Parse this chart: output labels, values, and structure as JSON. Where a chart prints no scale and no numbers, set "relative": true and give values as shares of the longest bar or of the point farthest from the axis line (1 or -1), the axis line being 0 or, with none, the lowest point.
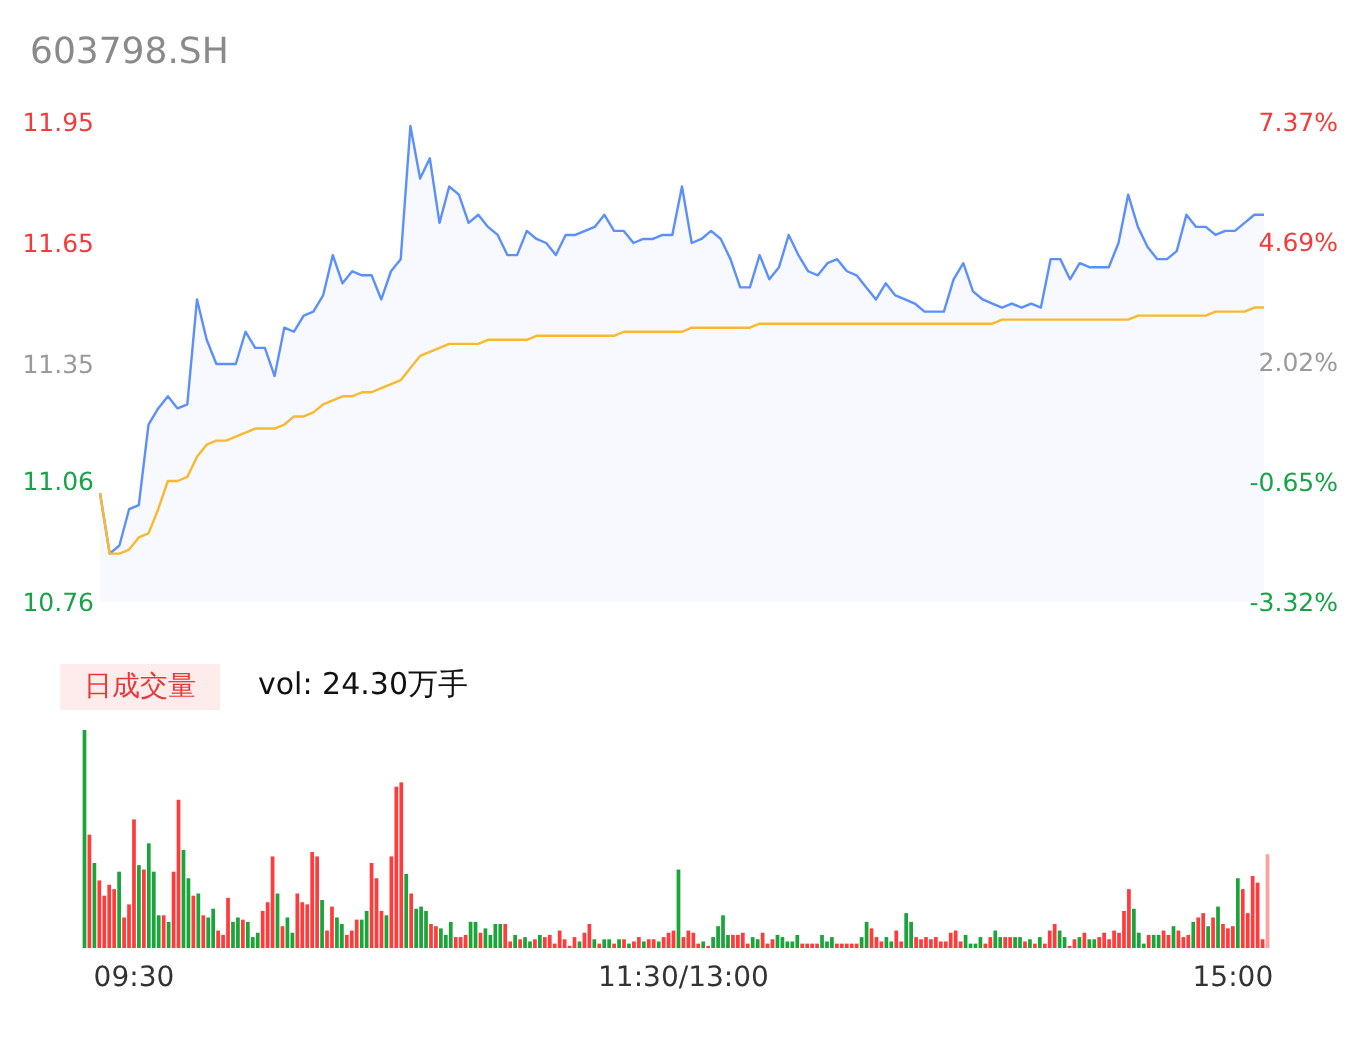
{
  "chart_data": [
    {
      "type": "line",
      "title": "603798.SH",
      "ylim": [
        10.76,
        11.95
      ],
      "yticks": [
        10.76,
        11.06,
        11.35,
        11.65,
        11.95
      ],
      "y2lim": [
        -3.32,
        7.37
      ],
      "y2ticks": [
        {
          "value": -3.32,
          "label": "-3.32%"
        },
        {
          "value": -0.65,
          "label": "-0.65%"
        },
        {
          "value": 2.02,
          "label": "2.02%"
        },
        {
          "value": 4.69,
          "label": "4.69%"
        },
        {
          "value": 7.37,
          "label": "7.37%"
        }
      ],
      "tick_labels": "y",
      "categories": [
        null,
        null,
        null,
        null,
        null,
        null,
        null,
        null,
        null,
        null,
        null,
        null,
        null,
        null,
        null,
        null,
        null,
        null,
        null,
        null,
        null,
        null,
        null,
        null,
        null,
        null,
        null,
        null,
        null,
        null,
        null,
        null,
        null,
        null,
        null,
        null,
        null,
        null,
        null,
        null,
        null,
        null,
        null,
        null,
        null,
        null,
        null,
        null,
        null,
        null,
        null,
        null,
        null,
        null,
        null,
        null,
        null,
        null,
        null,
        null,
        null,
        null,
        null,
        null,
        null,
        null,
        null,
        null,
        null,
        null,
        null,
        null,
        null,
        null,
        null,
        null,
        null,
        null,
        null,
        null,
        null,
        null,
        null,
        null,
        null,
        null,
        null,
        null,
        null,
        null,
        null,
        null,
        null,
        null,
        null,
        null,
        null,
        null,
        null,
        null,
        null,
        null,
        null,
        null,
        null,
        null,
        null,
        null,
        null,
        null,
        null,
        null,
        null,
        null,
        null,
        null,
        null,
        null,
        null,
        null,
        null
      ],
      "series": [
        {
          "type": "area",
          "color": "#5b8ff9",
          "values": [
            11.03,
            10.88,
            10.9,
            10.99,
            11.0,
            11.2,
            11.24,
            11.27,
            11.24,
            11.25,
            11.51,
            11.41,
            11.35,
            11.35,
            11.35,
            11.43,
            11.39,
            11.39,
            11.32,
            11.44,
            11.43,
            11.47,
            11.48,
            11.52,
            11.62,
            11.55,
            11.58,
            11.57,
            11.57,
            11.51,
            11.58,
            11.61,
            11.94,
            11.81,
            11.86,
            11.7,
            11.79,
            11.77,
            11.7,
            11.72,
            11.69,
            11.67,
            11.62,
            11.62,
            11.68,
            11.66,
            11.65,
            11.62,
            11.67,
            11.67,
            11.68,
            11.69,
            11.72,
            11.68,
            11.68,
            11.65,
            11.66,
            11.66,
            11.67,
            11.67,
            11.79,
            11.65,
            11.66,
            11.68,
            11.66,
            11.61,
            11.54,
            11.54,
            11.62,
            11.56,
            11.59,
            11.67,
            11.62,
            11.58,
            11.57,
            11.6,
            11.61,
            11.58,
            11.57,
            11.54,
            11.51,
            11.55,
            11.52,
            11.51,
            11.5,
            11.48,
            11.48,
            11.48,
            11.56,
            11.6,
            11.53,
            11.51,
            11.5,
            11.49,
            11.5,
            11.49,
            11.5,
            11.49,
            11.61,
            11.61,
            11.56,
            11.6,
            11.59,
            11.59,
            11.59,
            11.65,
            11.77,
            11.69,
            11.64,
            11.61,
            11.61,
            11.63,
            11.72,
            11.69,
            11.69,
            11.67,
            11.68,
            11.68,
            11.7,
            11.72,
            11.72
          ]
        },
        {
          "type": "line",
          "color": "#f9b92e",
          "values": [
            11.03,
            10.88,
            10.88,
            10.89,
            10.92,
            10.93,
            10.99,
            11.06,
            11.06,
            11.07,
            11.12,
            11.15,
            11.16,
            11.16,
            11.17,
            11.18,
            11.19,
            11.19,
            11.19,
            11.2,
            11.22,
            11.22,
            11.23,
            11.25,
            11.26,
            11.27,
            11.27,
            11.28,
            11.28,
            11.29,
            11.3,
            11.31,
            11.34,
            11.37,
            11.38,
            11.39,
            11.4,
            11.4,
            11.4,
            11.4,
            11.41,
            11.41,
            11.41,
            11.41,
            11.41,
            11.42,
            11.42,
            11.42,
            11.42,
            11.42,
            11.42,
            11.42,
            11.42,
            11.42,
            11.43,
            11.43,
            11.43,
            11.43,
            11.43,
            11.43,
            11.43,
            11.44,
            11.44,
            11.44,
            11.44,
            11.44,
            11.44,
            11.44,
            11.45,
            11.45,
            11.45,
            11.45,
            11.45,
            11.45,
            11.45,
            11.45,
            11.45,
            11.45,
            11.45,
            11.45,
            11.45,
            11.45,
            11.45,
            11.45,
            11.45,
            11.45,
            11.45,
            11.45,
            11.45,
            11.45,
            11.45,
            11.45,
            11.45,
            11.46,
            11.46,
            11.46,
            11.46,
            11.46,
            11.46,
            11.46,
            11.46,
            11.46,
            11.46,
            11.46,
            11.46,
            11.46,
            11.46,
            11.47,
            11.47,
            11.47,
            11.47,
            11.47,
            11.47,
            11.47,
            11.47,
            11.48,
            11.48,
            11.48,
            11.48,
            11.49,
            11.49
          ]
        }
      ]
    },
    {
      "type": "bar",
      "title": "日成交量",
      "subtitle": "vol: 24.30万手",
      "relative": true,
      "tick_labels": "x",
      "categories": [
        null,
        null,
        null,
        null,
        null,
        null,
        null,
        null,
        null,
        null,
        "09:30",
        null,
        null,
        null,
        null,
        null,
        null,
        null,
        null,
        null,
        null,
        null,
        null,
        null,
        null,
        null,
        null,
        null,
        null,
        null,
        null,
        null,
        null,
        null,
        null,
        null,
        null,
        null,
        null,
        null,
        null,
        null,
        null,
        null,
        null,
        null,
        null,
        null,
        null,
        null,
        null,
        null,
        null,
        null,
        null,
        null,
        null,
        null,
        null,
        null,
        null,
        null,
        null,
        null,
        null,
        null,
        null,
        null,
        null,
        null,
        null,
        null,
        null,
        null,
        null,
        null,
        null,
        null,
        null,
        null,
        null,
        null,
        null,
        null,
        null,
        null,
        null,
        null,
        null,
        null,
        null,
        null,
        null,
        null,
        null,
        null,
        null,
        null,
        null,
        null,
        null,
        null,
        null,
        null,
        null,
        null,
        null,
        null,
        null,
        null,
        null,
        null,
        null,
        null,
        null,
        null,
        null,
        null,
        null,
        null,
        null,
        "11:30/13:00",
        null,
        null,
        null,
        null,
        null,
        null,
        null,
        null,
        null,
        null,
        null,
        null,
        null,
        null,
        null,
        null,
        null,
        null,
        null,
        null,
        null,
        null,
        null,
        null,
        null,
        null,
        null,
        null,
        null,
        null,
        null,
        null,
        null,
        null,
        null,
        null,
        null,
        null,
        null,
        null,
        null,
        null,
        null,
        null,
        null,
        null,
        null,
        null,
        null,
        null,
        null,
        null,
        null,
        null,
        null,
        null,
        null,
        null,
        null,
        null,
        null,
        null,
        null,
        null,
        null,
        null,
        null,
        null,
        null,
        null,
        null,
        null,
        null,
        null,
        null,
        null,
        null,
        null,
        null,
        null,
        null,
        null,
        null,
        null,
        null,
        null,
        null,
        null,
        null,
        null,
        null,
        null,
        null,
        null,
        null,
        null,
        null,
        null,
        null,
        null,
        null,
        null,
        null,
        null,
        null,
        null,
        null,
        null,
        null,
        null,
        "15:00",
        null,
        null,
        null,
        null,
        null,
        null,
        null
      ],
      "values": [
        1,
        0.52,
        0.39,
        0.31,
        0.24,
        0.29,
        0.27,
        0.35,
        0.14,
        0.2,
        0.59,
        0.38,
        0.36,
        0.48,
        0.35,
        0.15,
        0.15,
        0.12,
        0.35,
        0.68,
        0.45,
        0.32,
        0.24,
        0.25,
        0.15,
        0.14,
        0.18,
        0.08,
        0.06,
        0.23,
        0.12,
        0.14,
        0.13,
        0.12,
        0.05,
        0.07,
        0.17,
        0.21,
        0.42,
        0.25,
        0.1,
        0.14,
        0.07,
        0.25,
        0.21,
        0.2,
        0.44,
        0.42,
        0.22,
        0.08,
        0.19,
        0.14,
        0.11,
        0.06,
        0.08,
        0.13,
        0.13,
        0.17,
        0.39,
        0.32,
        0.17,
        0.15,
        0.42,
        0.74,
        0.76,
        0.34,
        0.25,
        0.18,
        0.19,
        0.17,
        0.11,
        0.1,
        0.09,
        0.06,
        0.12,
        0.05,
        0.05,
        0.06,
        0.12,
        0.12,
        0.07,
        0.09,
        0.06,
        0.11,
        0.11,
        0.11,
        0.03,
        0.06,
        0.04,
        0.05,
        0.03,
        0.04,
        0.06,
        0.05,
        0.06,
        0.02,
        0.08,
        0.04,
        0.01,
        0.05,
        0.03,
        0.07,
        0.11,
        0.04,
        0.02,
        0.04,
        0.04,
        0.02,
        0.04,
        0.04,
        0.02,
        0.03,
        0.05,
        0.03,
        0.04,
        0.04,
        0.03,
        0.05,
        0.07,
        0.08,
        0.36,
        0.05,
        0.08,
        0.07,
        0.02,
        0.03,
        0.01,
        0.05,
        0.1,
        0.15,
        0.06,
        0.06,
        0.06,
        0.07,
        0.02,
        0.05,
        0.04,
        0.07,
        0.02,
        0.04,
        0.06,
        0.05,
        0.03,
        0.03,
        0.06,
        0.02,
        0.02,
        0.02,
        0.02,
        0.06,
        0.03,
        0.05,
        0.02,
        0.02,
        0.02,
        0.02,
        0.02,
        0.05,
        0.12,
        0.09,
        0.05,
        0.03,
        0.05,
        0.03,
        0.08,
        0.03,
        0.16,
        0.12,
        0.05,
        0.04,
        0.05,
        0.04,
        0.05,
        0.03,
        0.03,
        0.07,
        0.08,
        0.03,
        0.06,
        0.02,
        0.02,
        0.05,
        0.02,
        0.05,
        0.08,
        0.05,
        0.05,
        0.05,
        0.05,
        0.05,
        0.03,
        0.04,
        0.02,
        0.05,
        0.02,
        0.08,
        0.11,
        0.08,
        0.05,
        0.01,
        0.04,
        0.05,
        0.07,
        0.04,
        0.04,
        0.05,
        0.07,
        0.04,
        0.08,
        0.07,
        0.17,
        0.27,
        0.18,
        0.07,
        0.02,
        0.06,
        0.06,
        0.06,
        0.08,
        0.06,
        0.1,
        0.08,
        0.05,
        0.06,
        0.12,
        0.14,
        0.16,
        0.1,
        0.14,
        0.19,
        0.11,
        0.09,
        0.1,
        0.32,
        0.27,
        0.16,
        0.33,
        0.3,
        0.04,
        0.43
      ],
      "colors": [
        "#1aa53a",
        "#ff3b3b",
        "#1aa53a",
        "#ff3b3b",
        "#ff3b3b",
        "#ff3b3b",
        "#ff3b3b",
        "#1aa53a",
        "#ff3b3b",
        "#ff3b3b",
        "#ff3b3b",
        "#1aa53a",
        "#ff3b3b",
        "#1aa53a",
        "#1aa53a",
        "#1aa53a",
        "#ff3b3b",
        "#1aa53a",
        "#ff3b3b",
        "#ff3b3b",
        "#1aa53a",
        "#1aa53a",
        "#ff3b3b",
        "#1aa53a",
        "#ff3b3b",
        "#1aa53a",
        "#1aa53a",
        "#ff3b3b",
        "#ff3b3b",
        "#ff3b3b",
        "#1aa53a",
        "#1aa53a",
        "#ff3b3b",
        "#1aa53a",
        "#1aa53a",
        "#1aa53a",
        "#ff3b3b",
        "#ff3b3b",
        "#ff3b3b",
        "#1aa53a",
        "#ff3b3b",
        "#1aa53a",
        "#1aa53a",
        "#ff3b3b",
        "#ff3b3b",
        "#ff3b3b",
        "#ff3b3b",
        "#ff3b3b",
        "#1aa53a",
        "#ff3b3b",
        "#ff3b3b",
        "#1aa53a",
        "#1aa53a",
        "#ff3b3b",
        "#ff3b3b",
        "#ff3b3b",
        "#1aa53a",
        "#1aa53a",
        "#ff3b3b",
        "#ff3b3b",
        "#ff3b3b",
        "#1aa53a",
        "#ff3b3b",
        "#ff3b3b",
        "#ff3b3b",
        "#1aa53a",
        "#ff3b3b",
        "#1aa53a",
        "#1aa53a",
        "#1aa53a",
        "#ff3b3b",
        "#ff3b3b",
        "#1aa53a",
        "#1aa53a",
        "#1aa53a",
        "#ff3b3b",
        "#ff3b3b",
        "#ff3b3b",
        "#1aa53a",
        "#1aa53a",
        "#ff3b3b",
        "#1aa53a",
        "#1aa53a",
        "#1aa53a",
        "#1aa53a",
        "#ff3b3b",
        "#ff3b3b",
        "#1aa53a",
        "#ff3b3b",
        "#1aa53a",
        "#1aa53a",
        "#ff3b3b",
        "#1aa53a",
        "#ff3b3b",
        "#ff3b3b",
        "#ff3b3b",
        "#ff3b3b",
        "#ff3b3b",
        "#ff3b3b",
        "#ff3b3b",
        "#1aa53a",
        "#ff3b3b",
        "#ff3b3b",
        "#1aa53a",
        "#ff3b3b",
        "#1aa53a",
        "#1aa53a",
        "#ff3b3b",
        "#1aa53a",
        "#ff3b3b",
        "#1aa53a",
        "#ff3b3b",
        "#ff3b3b",
        "#1aa53a",
        "#ff3b3b",
        "#ff3b3b",
        "#1aa53a",
        "#ff3b3b",
        "#ff3b3b",
        "#ff3b3b",
        "#1aa53a",
        "#ff3b3b",
        "#ff3b3b",
        "#ff3b3b",
        "#ff3b3b",
        "#1aa53a",
        "#ff3b3b",
        "#1aa53a",
        "#1aa53a",
        "#1aa53a",
        "#1aa53a",
        "#ff3b3b",
        "#ff3b3b",
        "#ff3b3b",
        "#ff3b3b",
        "#1aa53a",
        "#1aa53a",
        "#ff3b3b",
        "#ff3b3b",
        "#ff3b3b",
        "#1aa53a",
        "#1aa53a",
        "#1aa53a",
        "#1aa53a",
        "#1aa53a",
        "#ff3b3b",
        "#ff3b3b",
        "#ff3b3b",
        "#ff3b3b",
        "#1aa53a",
        "#1aa53a",
        "#1aa53a",
        "#ff3b3b",
        "#ff3b3b",
        "#ff3b3b",
        "#ff3b3b",
        "#ff3b3b",
        "#1aa53a",
        "#1aa53a",
        "#ff3b3b",
        "#ff3b3b",
        "#ff3b3b",
        "#1aa53a",
        "#1aa53a",
        "#ff3b3b",
        "#ff3b3b",
        "#1aa53a",
        "#1aa53a",
        "#ff3b3b",
        "#ff3b3b",
        "#ff3b3b",
        "#ff3b3b",
        "#ff3b3b",
        "#ff3b3b",
        "#ff3b3b",
        "#ff3b3b",
        "#ff3b3b",
        "#ff3b3b",
        "#1aa53a",
        "#1aa53a",
        "#1aa53a",
        "#1aa53a",
        "#ff3b3b",
        "#ff3b3b",
        "#1aa53a",
        "#1aa53a",
        "#ff3b3b",
        "#ff3b3b",
        "#1aa53a",
        "#1aa53a",
        "#ff3b3b",
        "#1aa53a",
        "#ff3b3b",
        "#1aa53a",
        "#ff3b3b",
        "#ff3b3b",
        "#ff3b3b",
        "#1aa53a",
        "#1aa53a",
        "#ff3b3b",
        "#ff3b3b",
        "#1aa53a",
        "#ff3b3b",
        "#1aa53a",
        "#1aa53a",
        "#ff3b3b",
        "#ff3b3b",
        "#ff3b3b",
        "#ff3b3b",
        "#ff3b3b",
        "#ff3b3b",
        "#ff3b3b",
        "#1aa53a",
        "#1aa53a",
        "#1aa53a",
        "#ff3b3b",
        "#1aa53a",
        "#1aa53a",
        "#ff3b3b",
        "#ff3b3b",
        "#1aa53a",
        "#ff3b3b",
        "#ff3b3b",
        "#ff3b3b",
        "#1aa53a",
        "#ff3b3b",
        "#ff3b3b",
        "#1aa53a",
        "#ff3b3b",
        "#1aa53a",
        "#ff3b3b",
        "#ff3b3b",
        "#ff3b3b",
        "#1aa53a",
        "#ff3b3b",
        "#ff3b3b",
        "#ff3b3b",
        "#ff3b3b",
        "#ff3b3b",
        "#ffa0a0"
      ]
    }
  ]
}
